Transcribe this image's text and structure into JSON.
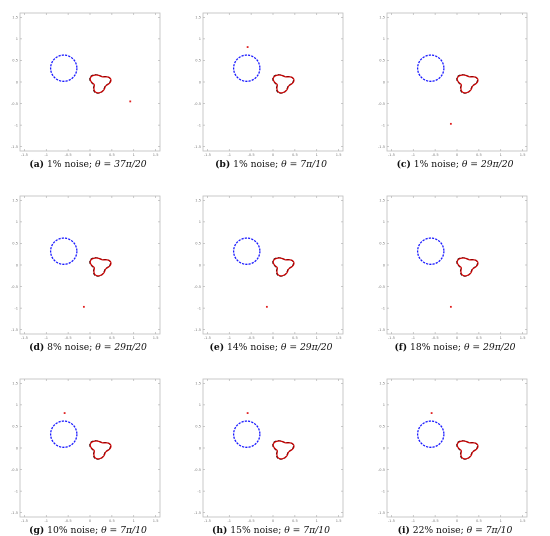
{
  "figure": {
    "tick_labels_x": [
      "-1.5",
      "-1",
      "-0.5",
      "0",
      "0.5",
      "1",
      "1.5"
    ],
    "tick_labels_y": [
      "1.5",
      "1",
      "0.5",
      "0",
      "-0.5",
      "-1",
      "-1.5"
    ],
    "colors": {
      "circle": "#1a1aff",
      "reconstruction": "#cc0000",
      "exact": "#000000",
      "source_point": "#e02020"
    },
    "panels": [
      {
        "id": "a",
        "label": "(a)",
        "noise": "1% noise;",
        "theta_text": "θ = 37π/20",
        "source_point": [
          0.92,
          -0.45
        ]
      },
      {
        "id": "b",
        "label": "(b)",
        "noise": "1% noise;",
        "theta_text": "θ = 7π/10",
        "source_point": [
          -0.58,
          0.81
        ]
      },
      {
        "id": "c",
        "label": "(c)",
        "noise": "1% noise;",
        "theta_text": "θ = 29π/20",
        "source_point": [
          -0.14,
          -0.97
        ]
      },
      {
        "id": "d",
        "label": "(d)",
        "noise": "8% noise;",
        "theta_text": "θ = 29π/20",
        "source_point": [
          -0.14,
          -0.97
        ]
      },
      {
        "id": "e",
        "label": "(e)",
        "noise": "14% noise;",
        "theta_text": "θ = 29π/20",
        "source_point": [
          -0.14,
          -0.97
        ]
      },
      {
        "id": "f",
        "label": "(f)",
        "noise": "18% noise;",
        "theta_text": "θ = 29π/20",
        "source_point": [
          -0.14,
          -0.97
        ]
      },
      {
        "id": "g",
        "label": "(g)",
        "noise": "10% noise;",
        "theta_text": "θ = 7π/10",
        "source_point": [
          -0.58,
          0.81
        ]
      },
      {
        "id": "h",
        "label": "(h)",
        "noise": "15% noise;",
        "theta_text": "θ = 7π/10",
        "source_point": [
          -0.58,
          0.81
        ]
      },
      {
        "id": "i",
        "label": "(i)",
        "noise": "22% noise;",
        "theta_text": "θ = 7π/10",
        "source_point": [
          -0.58,
          0.81
        ]
      }
    ]
  }
}
